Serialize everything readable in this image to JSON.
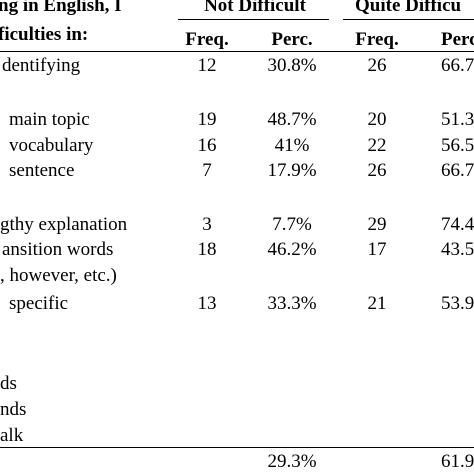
{
  "header": {
    "line1": "ng in English, I",
    "line2": "ficulties in:",
    "group_not_difficult": "Not Difficult",
    "group_quite_difficult": "Quite Difficu",
    "nd_freq": "Freq.",
    "nd_perc": "Perc.",
    "qd_freq": "Freq.",
    "qd_perc": "Perc"
  },
  "rows": [
    {
      "label": "dentifying",
      "nd_freq": "12",
      "nd_perc": "30.8%",
      "qd_freq": "26",
      "qd_perc": "66.7"
    },
    {
      "label": "main topic",
      "nd_freq": "19",
      "nd_perc": "48.7%",
      "qd_freq": "20",
      "qd_perc": "51.3"
    },
    {
      "label": "vocabulary",
      "nd_freq": "16",
      "nd_perc": "41%",
      "qd_freq": "22",
      "qd_perc": "56.5"
    },
    {
      "label": "sentence",
      "nd_freq": "7",
      "nd_perc": "17.9%",
      "qd_freq": "26",
      "qd_perc": "66.7"
    },
    {
      "label": "gthy explanation",
      "nd_freq": "3",
      "nd_perc": "7.7%",
      "qd_freq": "29",
      "qd_perc": "74.4"
    },
    {
      "label": "ansition words",
      "nd_freq": "18",
      "nd_perc": "46.2%",
      "qd_freq": "17",
      "qd_perc": "43.5"
    },
    {
      "label": ", however, etc.)",
      "nd_freq": "",
      "nd_perc": "",
      "qd_freq": "",
      "qd_perc": ""
    },
    {
      "label": "specific",
      "nd_freq": "13",
      "nd_perc": "33.3%",
      "qd_freq": "21",
      "qd_perc": "53.9"
    },
    {
      "label": "ds",
      "nd_freq": "",
      "nd_perc": "",
      "qd_freq": "",
      "qd_perc": ""
    },
    {
      "label": "nds",
      "nd_freq": "",
      "nd_perc": "",
      "qd_freq": "",
      "qd_perc": ""
    },
    {
      "label": "alk",
      "nd_freq": "",
      "nd_perc": "",
      "qd_freq": "",
      "qd_perc": ""
    }
  ],
  "total": {
    "nd_perc": "29.3%",
    "qd_perc": "61.9"
  }
}
